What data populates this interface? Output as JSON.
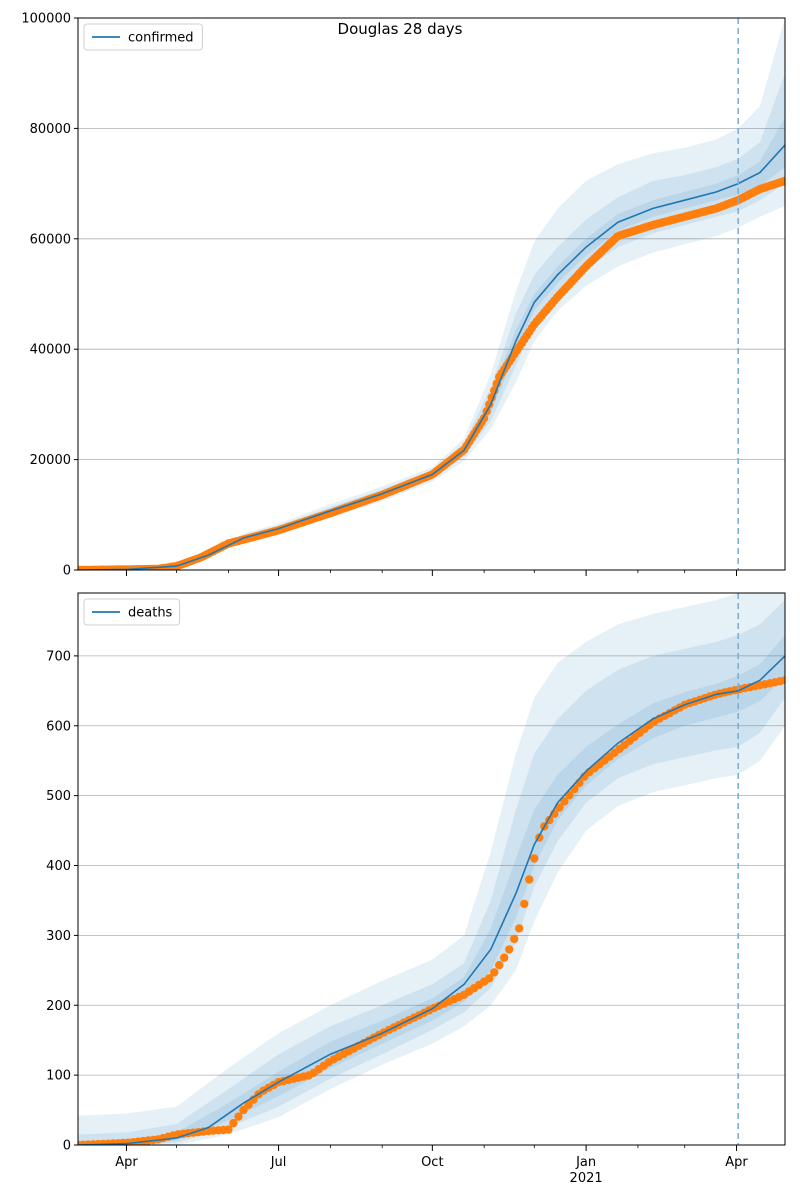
{
  "figure": {
    "suptitle": "Douglas 28 days",
    "colors": {
      "model": "#1f77b4",
      "observed": "#ff7f0e",
      "band": "#1f77b4",
      "forecast_line": "#7fb0d0",
      "grid": "#b0b0b0"
    },
    "x_ticks_major": [
      {
        "label": "Apr",
        "date": "2020-04-01"
      },
      {
        "label": "Jul",
        "date": "2020-07-01"
      },
      {
        "label": "Oct",
        "date": "2020-10-01"
      },
      {
        "label": "Jan",
        "date": "2021-01-01",
        "sublabel": "2021"
      },
      {
        "label": "Apr",
        "date": "2021-04-01"
      }
    ],
    "x_ticks_minor": [
      "2020-05-01",
      "2020-06-01",
      "2020-08-01",
      "2020-09-01",
      "2020-11-01",
      "2020-12-01",
      "2021-02-01",
      "2021-03-01"
    ],
    "forecast_start": "2021-04-02"
  },
  "chart_data": [
    {
      "type": "line",
      "legend": [
        "confirmed"
      ],
      "legend_position": "top-left",
      "xlim": [
        "2020-03-03",
        "2021-04-30"
      ],
      "ylim": [
        0,
        100000
      ],
      "y_ticks": [
        0,
        20000,
        40000,
        60000,
        80000,
        100000
      ],
      "grid": "y",
      "series": [
        {
          "name": "confirmed",
          "kind": "model",
          "x": [
            "2020-03-03",
            "2020-04-01",
            "2020-05-01",
            "2020-05-20",
            "2020-06-10",
            "2020-07-01",
            "2020-08-01",
            "2020-09-01",
            "2020-10-01",
            "2020-10-20",
            "2020-11-05",
            "2020-11-20",
            "2020-12-01",
            "2020-12-15",
            "2021-01-01",
            "2021-01-20",
            "2021-02-10",
            "2021-03-01",
            "2021-03-20",
            "2021-04-02",
            "2021-04-15",
            "2021-04-30"
          ],
          "y": [
            0,
            100,
            700,
            2700,
            5800,
            7500,
            10700,
            13800,
            17300,
            21700,
            30000,
            41500,
            48500,
            53500,
            58500,
            63000,
            65500,
            67000,
            68500,
            70000,
            72000,
            77000
          ]
        },
        {
          "name": "",
          "kind": "observed",
          "x": [
            "2020-03-03",
            "2020-04-01",
            "2020-04-20",
            "2020-05-01",
            "2020-05-15",
            "2020-06-01",
            "2020-06-20",
            "2020-07-01",
            "2020-08-01",
            "2020-09-01",
            "2020-10-01",
            "2020-10-20",
            "2020-11-01",
            "2020-11-10",
            "2020-11-20",
            "2020-12-01",
            "2020-12-15",
            "2021-01-01",
            "2021-01-20",
            "2021-02-10",
            "2021-03-01",
            "2021-03-20",
            "2021-04-02",
            "2021-04-15",
            "2021-04-30"
          ],
          "y": [
            0,
            100,
            200,
            700,
            2200,
            4800,
            6300,
            7200,
            10300,
            13600,
            17300,
            21800,
            27500,
            35000,
            39500,
            44500,
            49500,
            55000,
            60500,
            62500,
            64000,
            65500,
            67000,
            69000,
            70500
          ]
        }
      ],
      "bands": [
        {
          "x": [
            "2020-03-03",
            "2020-04-01",
            "2020-05-01",
            "2020-06-10",
            "2020-07-01",
            "2020-08-01",
            "2020-09-01",
            "2020-10-01",
            "2020-10-20",
            "2020-11-05",
            "2020-11-20",
            "2020-12-01",
            "2020-12-15",
            "2021-01-01",
            "2021-01-20",
            "2021-02-10",
            "2021-03-01",
            "2021-03-20",
            "2021-04-02",
            "2021-04-15",
            "2021-04-30"
          ],
          "lower": [
            0,
            50,
            550,
            5000,
            6600,
            9500,
            12500,
            16000,
            19800,
            25500,
            34000,
            41500,
            47000,
            51500,
            55000,
            57500,
            59000,
            60500,
            62000,
            64000,
            66000
          ],
          "upper": [
            0,
            200,
            900,
            6600,
            8400,
            11900,
            15100,
            18600,
            23800,
            35500,
            50500,
            59500,
            65500,
            70500,
            73500,
            75500,
            76500,
            78000,
            80000,
            84000,
            100000
          ]
        },
        {
          "x": [
            "2020-03-03",
            "2020-04-01",
            "2020-05-01",
            "2020-06-10",
            "2020-07-01",
            "2020-08-01",
            "2020-09-01",
            "2020-10-01",
            "2020-10-20",
            "2020-11-05",
            "2020-11-20",
            "2020-12-01",
            "2020-12-15",
            "2021-01-01",
            "2021-01-20",
            "2021-02-10",
            "2021-03-01",
            "2021-03-20",
            "2021-04-02",
            "2021-04-15",
            "2021-04-30"
          ],
          "lower": [
            0,
            70,
            600,
            5300,
            6950,
            10000,
            13000,
            16500,
            20500,
            27000,
            37000,
            44500,
            49500,
            54500,
            58500,
            61000,
            62500,
            64000,
            65000,
            67000,
            70000
          ],
          "upper": [
            0,
            150,
            800,
            6300,
            8050,
            11400,
            14600,
            18100,
            23000,
            33000,
            46500,
            53500,
            58500,
            63500,
            67500,
            70500,
            71500,
            73000,
            74500,
            77500,
            90000
          ]
        },
        {
          "x": [
            "2020-03-03",
            "2020-04-01",
            "2020-05-01",
            "2020-06-10",
            "2020-07-01",
            "2020-08-01",
            "2020-09-01",
            "2020-10-01",
            "2020-10-20",
            "2020-11-05",
            "2020-11-20",
            "2020-12-01",
            "2020-12-15",
            "2021-01-01",
            "2021-01-20",
            "2021-02-10",
            "2021-03-01",
            "2021-03-20",
            "2021-04-02",
            "2021-04-15",
            "2021-04-30"
          ],
          "lower": [
            0,
            85,
            650,
            5550,
            7200,
            10350,
            13400,
            16900,
            21100,
            28500,
            39500,
            47000,
            52000,
            57000,
            61500,
            64000,
            65500,
            67000,
            68000,
            69500,
            73000
          ],
          "upper": [
            0,
            120,
            750,
            6050,
            7800,
            11050,
            14200,
            17700,
            22300,
            31500,
            43500,
            50000,
            55000,
            60000,
            64500,
            67000,
            68500,
            70000,
            71500,
            74000,
            82000
          ]
        }
      ]
    },
    {
      "type": "line",
      "legend": [
        "deaths"
      ],
      "legend_position": "top-left",
      "xlim": [
        "2020-03-03",
        "2021-04-30"
      ],
      "ylim": [
        0,
        790
      ],
      "y_ticks": [
        0,
        100,
        200,
        300,
        400,
        500,
        600,
        700
      ],
      "grid": "y",
      "series": [
        {
          "name": "deaths",
          "kind": "model",
          "x": [
            "2020-03-03",
            "2020-04-01",
            "2020-05-01",
            "2020-05-20",
            "2020-06-10",
            "2020-07-01",
            "2020-08-01",
            "2020-09-01",
            "2020-10-01",
            "2020-10-20",
            "2020-11-05",
            "2020-11-20",
            "2020-12-01",
            "2020-12-15",
            "2021-01-01",
            "2021-01-20",
            "2021-02-10",
            "2021-03-01",
            "2021-03-20",
            "2021-04-02",
            "2021-04-15",
            "2021-04-30"
          ],
          "y": [
            0,
            2,
            10,
            25,
            60,
            90,
            130,
            160,
            195,
            230,
            280,
            360,
            430,
            490,
            535,
            575,
            610,
            630,
            645,
            650,
            665,
            700
          ]
        },
        {
          "name": "",
          "kind": "observed",
          "x": [
            "2020-03-03",
            "2020-04-01",
            "2020-04-20",
            "2020-05-01",
            "2020-05-20",
            "2020-06-01",
            "2020-06-10",
            "2020-06-20",
            "2020-07-01",
            "2020-07-20",
            "2020-08-01",
            "2020-09-01",
            "2020-10-01",
            "2020-10-20",
            "2020-11-05",
            "2020-11-15",
            "2020-11-22",
            "2020-11-28",
            "2020-12-05",
            "2020-12-15",
            "2021-01-01",
            "2021-01-20",
            "2021-02-10",
            "2021-03-01",
            "2021-03-20",
            "2021-04-02",
            "2021-04-15",
            "2021-04-30"
          ],
          "y": [
            0,
            3,
            8,
            15,
            20,
            22,
            50,
            75,
            90,
            100,
            120,
            160,
            195,
            215,
            240,
            275,
            310,
            380,
            450,
            480,
            530,
            565,
            605,
            630,
            645,
            652,
            658,
            665
          ]
        }
      ],
      "bands": [
        {
          "x": [
            "2020-03-03",
            "2020-04-01",
            "2020-05-01",
            "2020-06-01",
            "2020-07-01",
            "2020-08-01",
            "2020-09-01",
            "2020-10-01",
            "2020-10-20",
            "2020-11-05",
            "2020-11-20",
            "2020-12-01",
            "2020-12-15",
            "2021-01-01",
            "2021-01-20",
            "2021-02-10",
            "2021-03-01",
            "2021-03-20",
            "2021-04-02",
            "2021-04-15",
            "2021-04-30"
          ],
          "lower": [
            0,
            0,
            0,
            15,
            40,
            80,
            115,
            145,
            170,
            200,
            250,
            320,
            390,
            450,
            485,
            505,
            515,
            525,
            530,
            550,
            600
          ],
          "upper": [
            42,
            45,
            55,
            110,
            160,
            200,
            235,
            265,
            300,
            420,
            560,
            640,
            690,
            720,
            745,
            760,
            770,
            780,
            790,
            790,
            790
          ]
        },
        {
          "x": [
            "2020-03-03",
            "2020-04-01",
            "2020-05-01",
            "2020-06-01",
            "2020-07-01",
            "2020-08-01",
            "2020-09-01",
            "2020-10-01",
            "2020-10-20",
            "2020-11-05",
            "2020-11-20",
            "2020-12-01",
            "2020-12-15",
            "2021-01-01",
            "2021-01-20",
            "2021-02-10",
            "2021-03-01",
            "2021-03-20",
            "2021-04-02",
            "2021-04-15",
            "2021-04-30"
          ],
          "lower": [
            0,
            0,
            3,
            25,
            55,
            95,
            130,
            165,
            190,
            225,
            290,
            370,
            435,
            490,
            525,
            545,
            555,
            565,
            570,
            590,
            640
          ],
          "upper": [
            15,
            18,
            30,
            80,
            130,
            170,
            200,
            230,
            260,
            350,
            480,
            560,
            610,
            650,
            680,
            700,
            710,
            720,
            730,
            745,
            780
          ]
        },
        {
          "x": [
            "2020-03-03",
            "2020-04-01",
            "2020-05-01",
            "2020-06-01",
            "2020-07-01",
            "2020-08-01",
            "2020-09-01",
            "2020-10-01",
            "2020-10-20",
            "2020-11-05",
            "2020-11-20",
            "2020-12-01",
            "2020-12-15",
            "2021-01-01",
            "2021-01-20",
            "2021-02-10",
            "2021-03-01",
            "2021-03-20",
            "2021-04-02",
            "2021-04-15",
            "2021-04-30"
          ],
          "lower": [
            0,
            0,
            6,
            35,
            70,
            110,
            145,
            178,
            205,
            250,
            325,
            400,
            465,
            515,
            552,
            582,
            600,
            612,
            620,
            635,
            670
          ],
          "upper": [
            5,
            6,
            18,
            60,
            105,
            148,
            178,
            210,
            240,
            310,
            410,
            480,
            530,
            570,
            602,
            632,
            648,
            660,
            672,
            688,
            730
          ]
        }
      ]
    }
  ]
}
